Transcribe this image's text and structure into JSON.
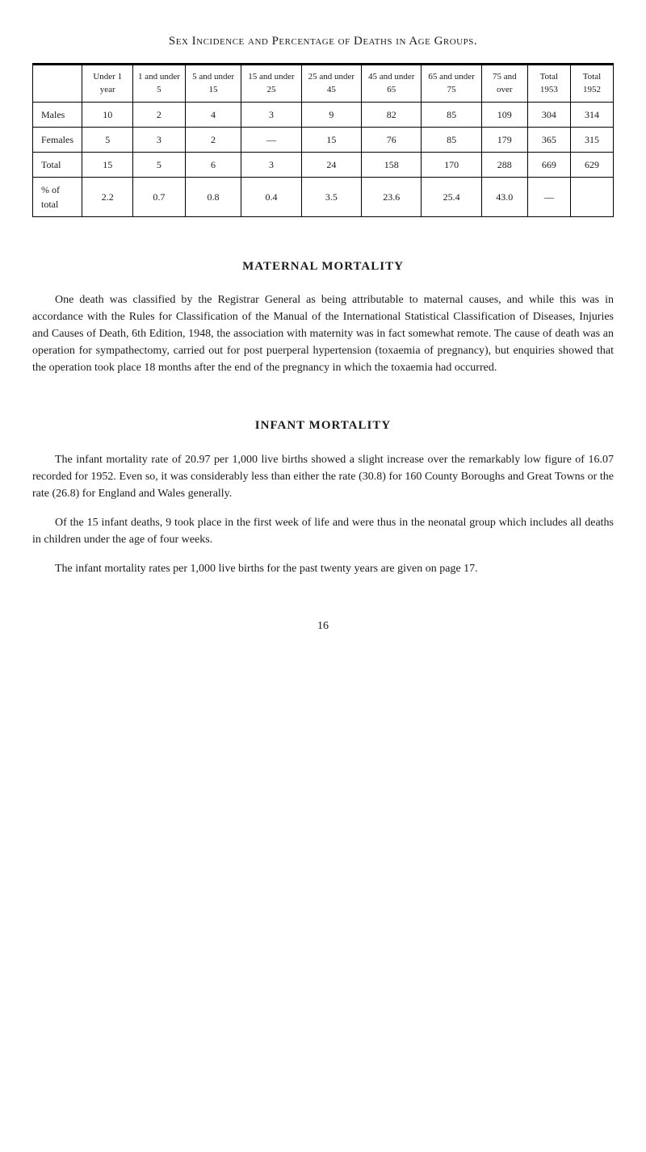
{
  "table_title": "Sex Incidence and Percentage of Deaths in Age Groups.",
  "table": {
    "columns": [
      "",
      "Under 1 year",
      "1 and under 5",
      "5 and under 15",
      "15 and under 25",
      "25 and under 45",
      "45 and under 65",
      "65 and under 75",
      "75 and over",
      "Total 1953",
      "Total 1952"
    ],
    "rows": [
      {
        "label": "Males",
        "vals": [
          "10",
          "2",
          "4",
          "3",
          "9",
          "82",
          "85",
          "109",
          "304",
          "314"
        ]
      },
      {
        "label": "Females",
        "vals": [
          "5",
          "3",
          "2",
          "—",
          "15",
          "76",
          "85",
          "179",
          "365",
          "315"
        ]
      },
      {
        "label": "Total",
        "vals": [
          "15",
          "5",
          "6",
          "3",
          "24",
          "158",
          "170",
          "288",
          "669",
          "629"
        ]
      },
      {
        "label": "% of total",
        "vals": [
          "2.2",
          "0.7",
          "0.8",
          "0.4",
          "3.5",
          "23.6",
          "25.4",
          "43.0",
          "—",
          ""
        ]
      }
    ]
  },
  "sections": [
    {
      "heading": "MATERNAL MORTALITY",
      "paragraphs": [
        "One death was classified by the Registrar General as being attributable to maternal causes, and while this was in accordance with the Rules for Classification of the Manual of the International Statistical Classification of Diseases, Injuries and Causes of Death, 6th Edition, 1948, the association with maternity was in fact somewhat remote. The cause of death was an operation for sympathectomy, carried out for post puerperal hypertension (toxaemia of pregnancy), but enquiries showed that the operation took place 18 months after the end of the pregnancy in which the toxaemia had occurred."
      ]
    },
    {
      "heading": "INFANT MORTALITY",
      "paragraphs": [
        "The infant mortality rate of 20.97 per 1,000 live births showed a slight increase over the remarkably low figure of 16.07 recorded for 1952. Even so, it was considerably less than either the rate (30.8) for 160 County Boroughs and Great Towns or the rate (26.8) for England and Wales generally.",
        "Of the 15 infant deaths, 9 took place in the first week of life and were thus in the neonatal group which includes all deaths in children under the age of four weeks.",
        "The infant mortality rates per 1,000 live births for the past twenty years are given on page 17."
      ]
    }
  ],
  "page_number": "16"
}
